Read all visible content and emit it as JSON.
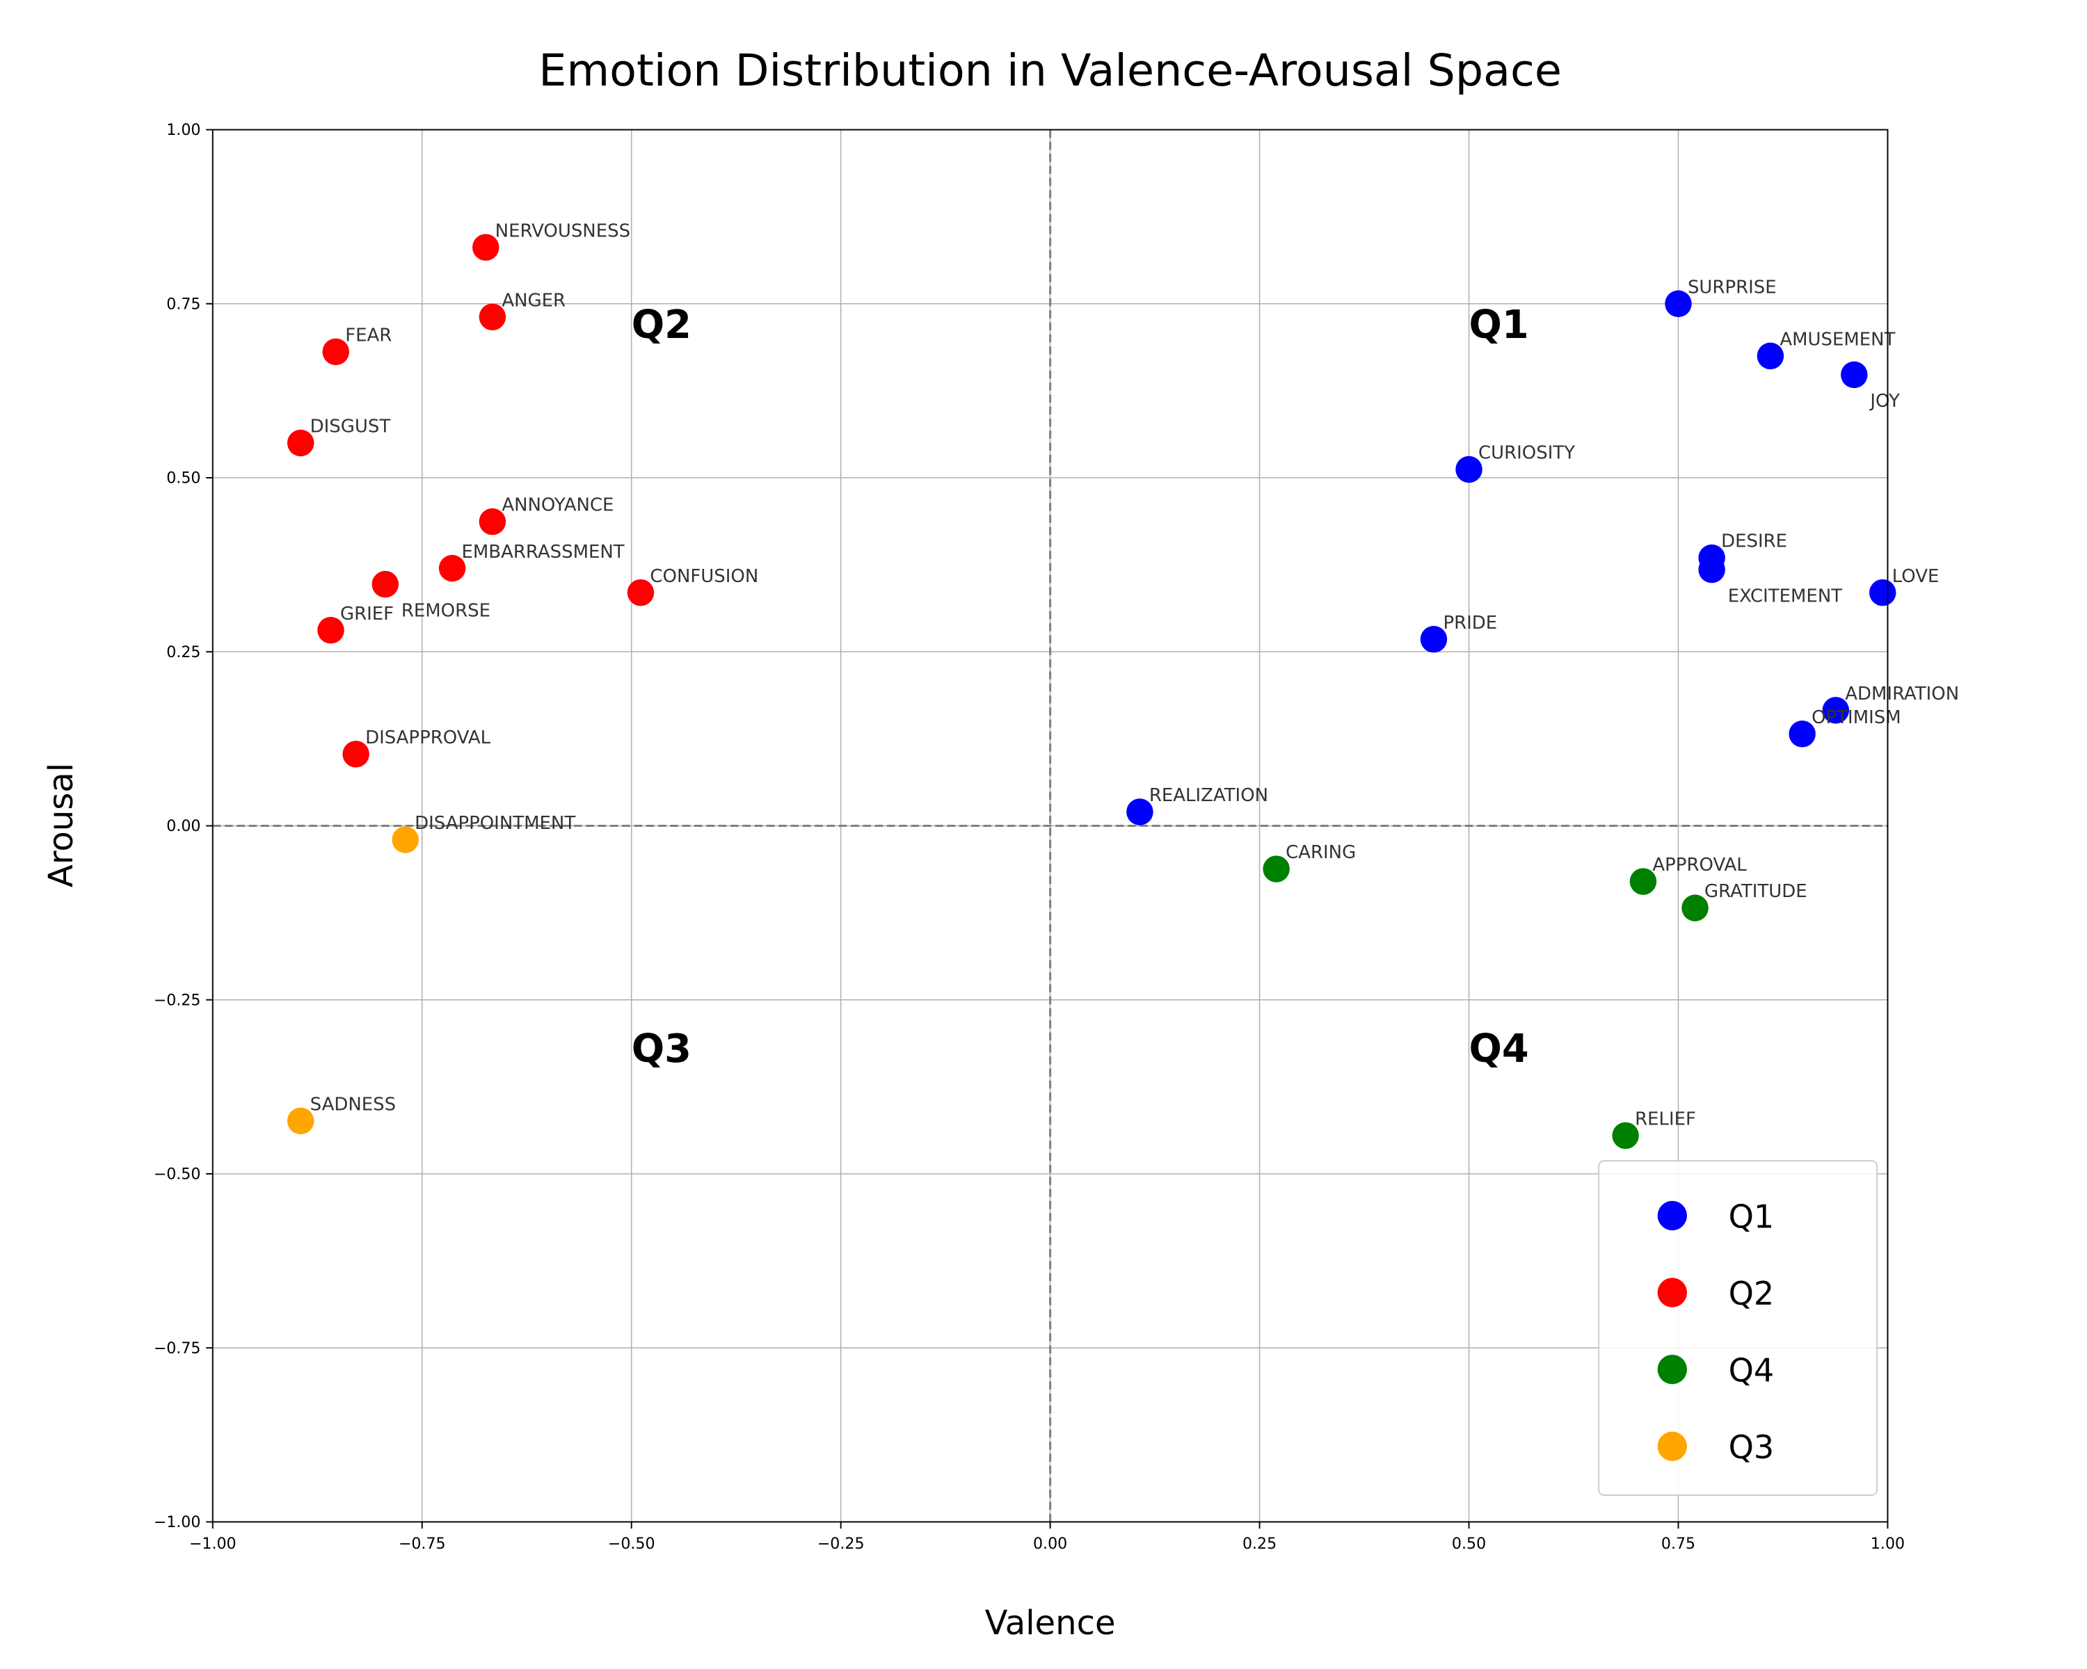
{
  "chart_data": {
    "type": "scatter",
    "title": "Emotion Distribution in Valence-Arousal Space",
    "xlabel": "Valence",
    "ylabel": "Arousal",
    "xlim": [
      -1,
      1
    ],
    "ylim": [
      -1,
      1
    ],
    "xticks": [
      "−1.00",
      "−0.75",
      "−0.50",
      "−0.25",
      "0.00",
      "0.25",
      "0.50",
      "0.75",
      "1.00"
    ],
    "yticks": [
      "−1.00",
      "−0.75",
      "−0.50",
      "−0.25",
      "0.00",
      "0.25",
      "0.50",
      "0.75",
      "1.00"
    ],
    "grid": true,
    "legend_position": "bottom-right",
    "quadrant_labels": [
      {
        "text": "Q1",
        "x": 0.5,
        "y": 0.72
      },
      {
        "text": "Q2",
        "x": -0.5,
        "y": 0.72
      },
      {
        "text": "Q3",
        "x": -0.5,
        "y": -0.32
      },
      {
        "text": "Q4",
        "x": 0.5,
        "y": -0.32
      }
    ],
    "series": [
      {
        "name": "Q1",
        "color": "#0000ff",
        "points": [
          {
            "label": "SURPRISE",
            "x": 0.75,
            "y": 0.75
          },
          {
            "label": "AMUSEMENT",
            "x": 0.86,
            "y": 0.675
          },
          {
            "label": "JOY",
            "x": 0.96,
            "y": 0.648
          },
          {
            "label": "CURIOSITY",
            "x": 0.5,
            "y": 0.512
          },
          {
            "label": "DESIRE",
            "x": 0.79,
            "y": 0.385
          },
          {
            "label": "EXCITEMENT",
            "x": 0.79,
            "y": 0.368
          },
          {
            "label": "LOVE",
            "x": 0.994,
            "y": 0.335
          },
          {
            "label": "PRIDE",
            "x": 0.458,
            "y": 0.268
          },
          {
            "label": "ADMIRATION",
            "x": 0.938,
            "y": 0.166
          },
          {
            "label": "OPTIMISM",
            "x": 0.898,
            "y": 0.132
          },
          {
            "label": "REALIZATION",
            "x": 0.107,
            "y": 0.02
          }
        ]
      },
      {
        "name": "Q2",
        "color": "#ff0000",
        "points": [
          {
            "label": "NERVOUSNESS",
            "x": -0.674,
            "y": 0.831
          },
          {
            "label": "ANGER",
            "x": -0.666,
            "y": 0.731
          },
          {
            "label": "FEAR",
            "x": -0.853,
            "y": 0.681
          },
          {
            "label": "DISGUST",
            "x": -0.895,
            "y": 0.55
          },
          {
            "label": "ANNOYANCE",
            "x": -0.666,
            "y": 0.437
          },
          {
            "label": "EMBARRASSMENT",
            "x": -0.714,
            "y": 0.37
          },
          {
            "label": "REMORSE",
            "x": -0.794,
            "y": 0.347
          },
          {
            "label": "GRIEF",
            "x": -0.859,
            "y": 0.281
          },
          {
            "label": "CONFUSION",
            "x": -0.489,
            "y": 0.335
          },
          {
            "label": "DISAPPROVAL",
            "x": -0.829,
            "y": 0.103
          }
        ]
      },
      {
        "name": "Q4",
        "color": "#008000",
        "points": [
          {
            "label": "CARING",
            "x": 0.27,
            "y": -0.062
          },
          {
            "label": "APPROVAL",
            "x": 0.708,
            "y": -0.08
          },
          {
            "label": "GRATITUDE",
            "x": 0.77,
            "y": -0.118
          },
          {
            "label": "RELIEF",
            "x": 0.687,
            "y": -0.445
          }
        ]
      },
      {
        "name": "Q3",
        "color": "#ffa500",
        "points": [
          {
            "label": "DISAPPOINTMENT",
            "x": -0.77,
            "y": -0.02
          },
          {
            "label": "SADNESS",
            "x": -0.895,
            "y": -0.424
          }
        ]
      }
    ]
  }
}
